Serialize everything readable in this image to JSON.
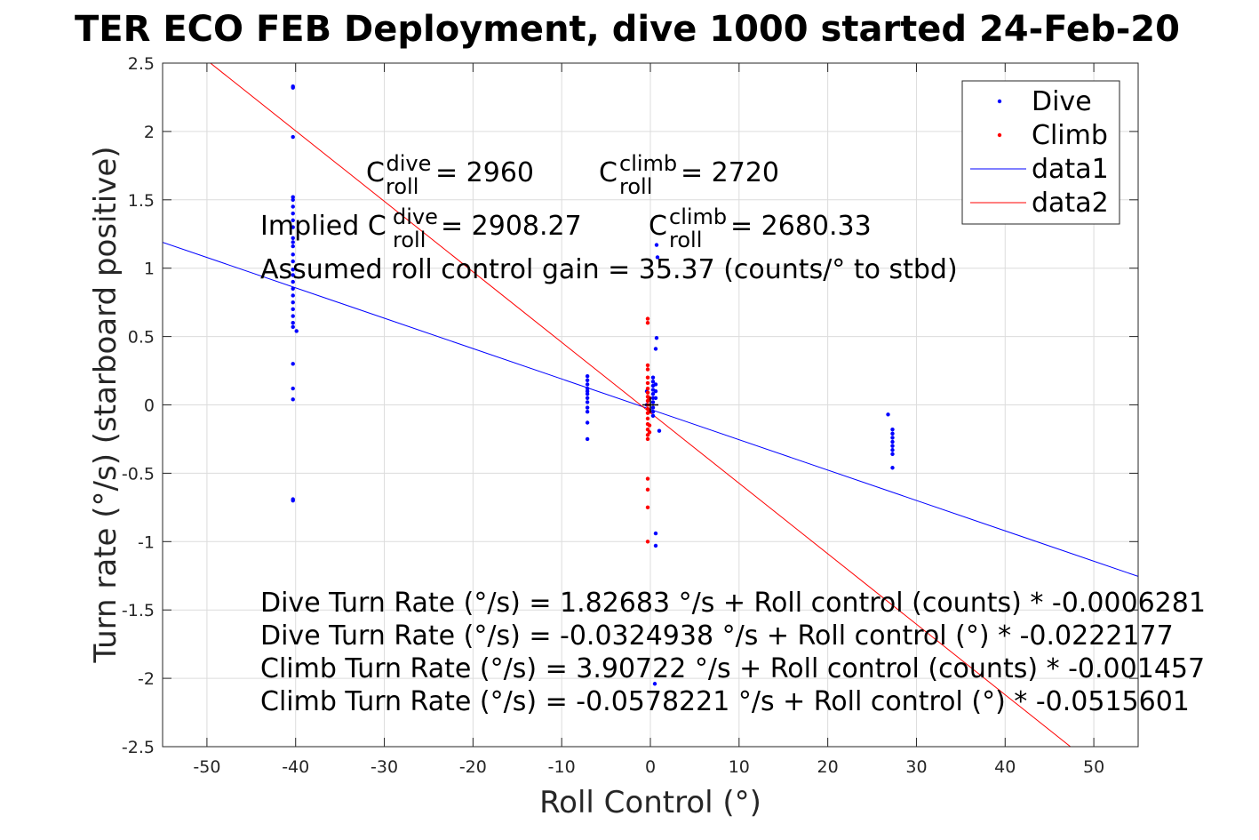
{
  "chart_data": {
    "type": "scatter",
    "title": "TER ECO FEB Deployment, dive 1000 started 24-Feb-20",
    "xlabel": "Roll Control (°)",
    "ylabel": "Turn rate (°/s) (starboard positive)",
    "xlim": [
      -55,
      55
    ],
    "ylim": [
      -2.5,
      2.5
    ],
    "grid": true,
    "legend_position": "top-right",
    "x_ticks": [
      -50,
      -40,
      -30,
      -20,
      -10,
      0,
      10,
      20,
      30,
      40,
      50
    ],
    "y_ticks": [
      2.5,
      2,
      1.5,
      1,
      0.5,
      0,
      -0.5,
      -1,
      -1.5,
      -2,
      -2.5
    ],
    "series": [
      {
        "name": "Dive",
        "kind": "points",
        "color": "#0000ff",
        "points": [
          [
            -40.3,
            2.33
          ],
          [
            -40.3,
            2.32
          ],
          [
            -40.3,
            1.96
          ],
          [
            -40.3,
            1.52
          ],
          [
            -40.3,
            1.5
          ],
          [
            -40.3,
            1.45
          ],
          [
            -40.3,
            1.4
          ],
          [
            -40.3,
            1.35
          ],
          [
            -40.3,
            1.3
          ],
          [
            -40.3,
            1.22
          ],
          [
            -40.3,
            1.19
          ],
          [
            -40.3,
            1.16
          ],
          [
            -40.3,
            1.1
          ],
          [
            -40.3,
            1.05
          ],
          [
            -40.3,
            0.99
          ],
          [
            -40.3,
            0.95
          ],
          [
            -40.3,
            0.9
          ],
          [
            -40.3,
            0.85
          ],
          [
            -40.3,
            0.8
          ],
          [
            -40.3,
            0.75
          ],
          [
            -40.3,
            0.7
          ],
          [
            -40.3,
            0.65
          ],
          [
            -40.3,
            0.6
          ],
          [
            -40.3,
            0.57
          ],
          [
            -39.9,
            0.54
          ],
          [
            -40.3,
            0.3
          ],
          [
            -40.3,
            0.12
          ],
          [
            -40.3,
            0.04
          ],
          [
            -40.3,
            -0.69
          ],
          [
            -40.3,
            -0.7
          ],
          [
            -7.1,
            0.21
          ],
          [
            -7.1,
            0.18
          ],
          [
            -7.1,
            0.15
          ],
          [
            -7.1,
            0.12
          ],
          [
            -7.1,
            0.1
          ],
          [
            -7.1,
            0.08
          ],
          [
            -7.1,
            0.05
          ],
          [
            -7.1,
            0.02
          ],
          [
            -7.1,
            -0.02
          ],
          [
            -7.1,
            -0.05
          ],
          [
            -7.1,
            -0.13
          ],
          [
            -7.1,
            -0.25
          ],
          [
            0.3,
            0.2
          ],
          [
            0.3,
            0.17
          ],
          [
            0.3,
            0.14
          ],
          [
            0.3,
            0.11
          ],
          [
            0.3,
            0.08
          ],
          [
            0.3,
            0.05
          ],
          [
            0.3,
            0.02
          ],
          [
            0.3,
            -0.02
          ],
          [
            0.3,
            -0.05
          ],
          [
            0.3,
            -0.08
          ],
          [
            0.6,
            0.15
          ],
          [
            0.6,
            0.1
          ],
          [
            0.6,
            0.05
          ],
          [
            -0.4,
            0.1
          ],
          [
            -0.4,
            0.0
          ],
          [
            0.7,
            1.17
          ],
          [
            0.8,
            1.08
          ],
          [
            0.7,
            0.49
          ],
          [
            0.6,
            0.41
          ],
          [
            1.0,
            -0.19
          ],
          [
            0.6,
            -0.94
          ],
          [
            0.6,
            -1.03
          ],
          [
            0.5,
            -2.04
          ],
          [
            26.8,
            -0.07
          ],
          [
            27.3,
            -0.18
          ],
          [
            27.3,
            -0.21
          ],
          [
            27.3,
            -0.24
          ],
          [
            27.3,
            -0.27
          ],
          [
            27.3,
            -0.3
          ],
          [
            27.3,
            -0.33
          ],
          [
            27.3,
            -0.36
          ],
          [
            27.3,
            -0.46
          ]
        ]
      },
      {
        "name": "Climb",
        "kind": "points",
        "color": "#ff0000",
        "points": [
          [
            -0.3,
            0.63
          ],
          [
            -0.3,
            0.6
          ],
          [
            -0.3,
            0.29
          ],
          [
            -0.3,
            0.26
          ],
          [
            -0.3,
            0.2
          ],
          [
            -0.3,
            0.16
          ],
          [
            -0.3,
            0.12
          ],
          [
            -0.3,
            0.09
          ],
          [
            -0.3,
            0.06
          ],
          [
            -0.3,
            0.03
          ],
          [
            -0.3,
            0.0
          ],
          [
            -0.3,
            -0.03
          ],
          [
            -0.3,
            -0.06
          ],
          [
            -0.3,
            -0.1
          ],
          [
            -0.3,
            -0.14
          ],
          [
            -0.3,
            -0.18
          ],
          [
            -0.3,
            -0.22
          ],
          [
            -0.3,
            -0.25
          ],
          [
            -0.1,
            0.05
          ],
          [
            -0.1,
            -0.05
          ],
          [
            -0.1,
            -0.15
          ],
          [
            -0.1,
            -0.2
          ],
          [
            -0.3,
            -0.54
          ],
          [
            -0.3,
            -0.62
          ],
          [
            -0.3,
            -0.75
          ],
          [
            -0.3,
            -1.0
          ]
        ]
      },
      {
        "name": "data1",
        "kind": "line",
        "color": "#0000ff",
        "intercept": -0.0324938,
        "slope": -0.0222177
      },
      {
        "name": "data2",
        "kind": "line",
        "color": "#ff0000",
        "intercept": -0.0578221,
        "slope": -0.0515601
      }
    ],
    "marker": {
      "kind": "plus",
      "x": 0,
      "y": 0,
      "color": "#000000"
    },
    "annotations": {
      "c_dive_prefix": "C",
      "c_dive_sup": "dive",
      "c_dive_sub": "roll",
      "c_dive_value": " = 2960",
      "c_climb_prefix": "C",
      "c_climb_sup": "climb",
      "c_climb_sub": "roll",
      "c_climb_value": " = 2720",
      "implied_prefix": "Implied C",
      "implied_dive_sup": "dive",
      "implied_dive_sub": "roll",
      "implied_dive_value": " = 2908.27",
      "implied_climb_prefix": "C",
      "implied_climb_sup": "climb",
      "implied_climb_sub": "roll",
      "implied_climb_value": " = 2680.33",
      "gain": "Assumed roll control gain = 35.37 (counts/° to stbd)",
      "fit_lines": [
        "Dive Turn Rate (°/s) = 1.82683 °/s + Roll control (counts) * -0.0006281",
        "Dive Turn Rate (°/s) = -0.0324938 °/s + Roll control (°) * -0.0222177",
        "Climb Turn Rate (°/s) = 3.90722 °/s + Roll control (counts) * -0.001457",
        "Climb Turn Rate (°/s) = -0.0578221 °/s + Roll control (°) * -0.0515601"
      ]
    }
  }
}
